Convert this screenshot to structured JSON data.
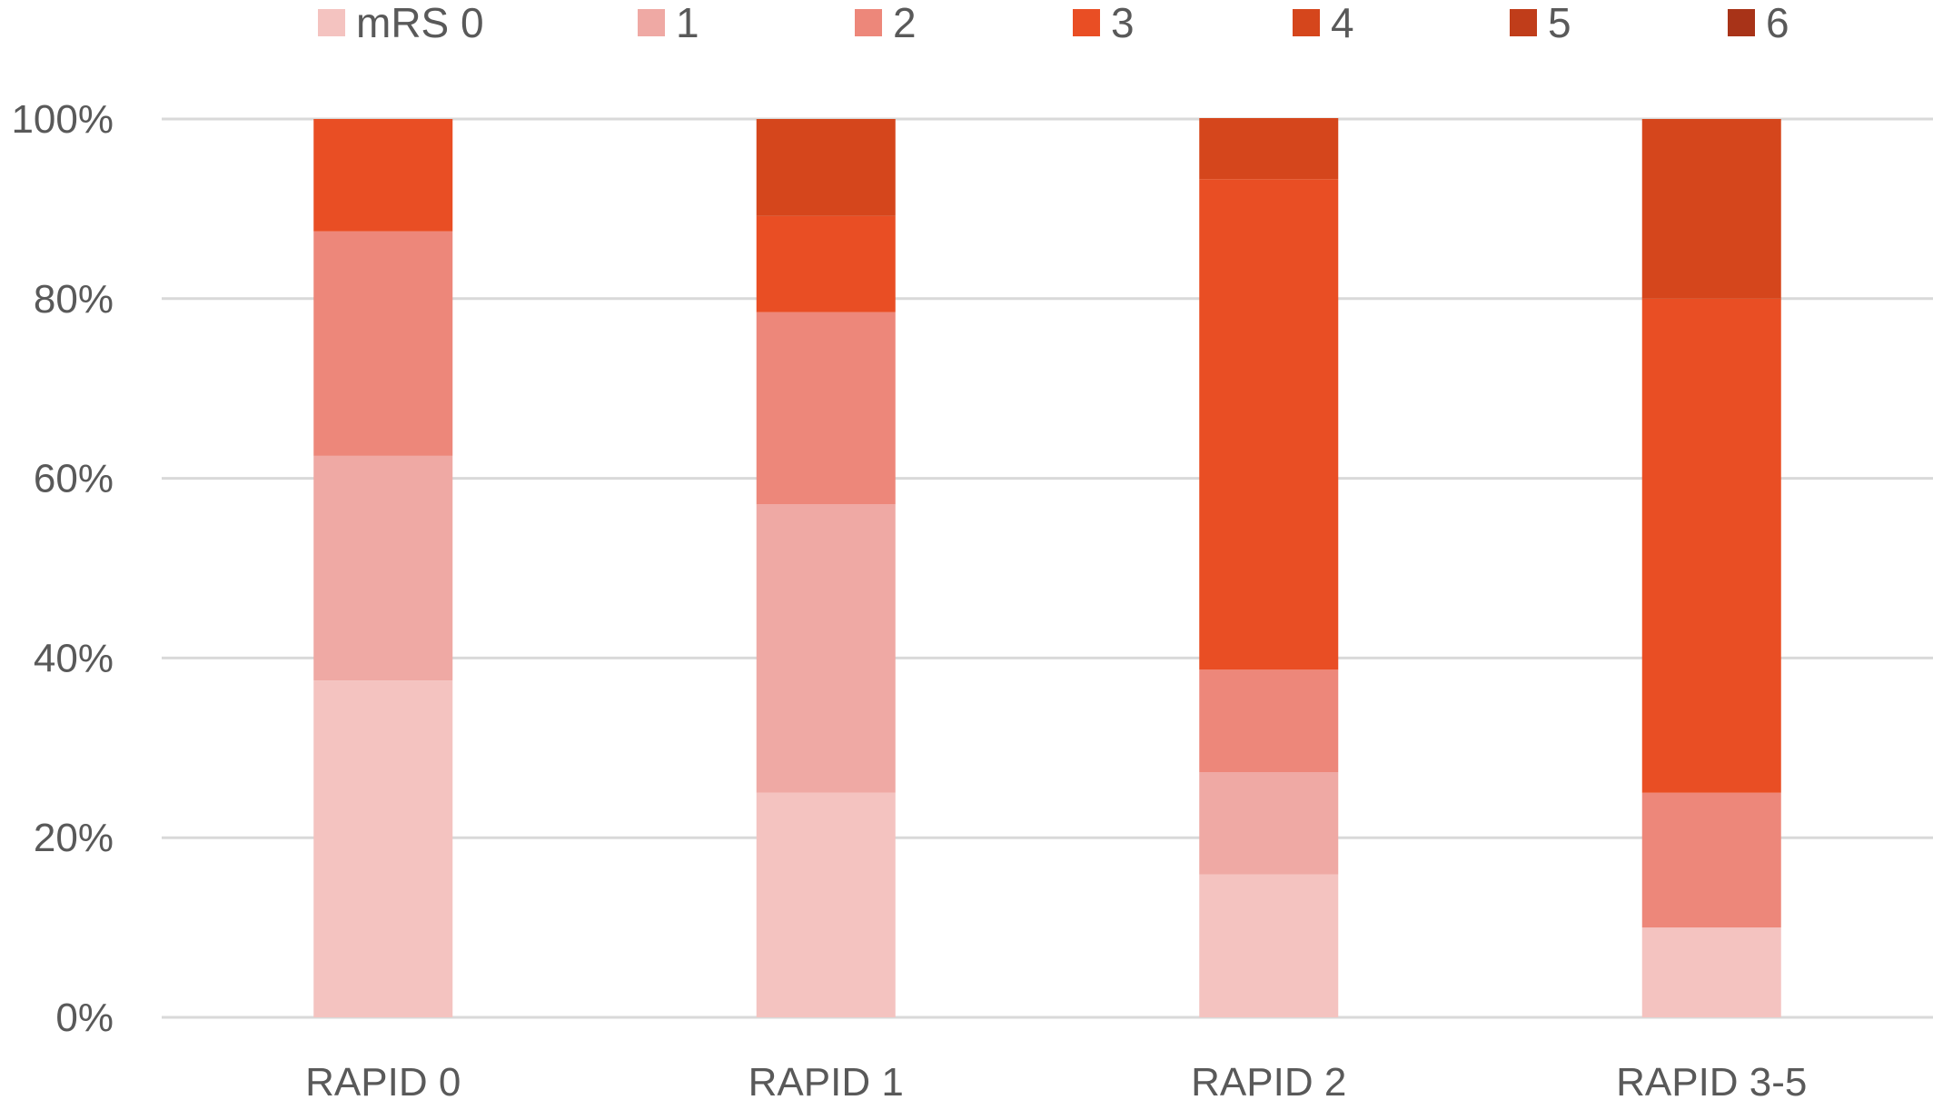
{
  "chart_data": {
    "type": "bar",
    "stacked": true,
    "percent": true,
    "categories": [
      "RAPID 0",
      "RAPID 1",
      "RAPID 2",
      "RAPID 3-5"
    ],
    "series": [
      {
        "name": "mRS 0",
        "color": "#f4c3c0",
        "values": [
          37.5,
          25.0,
          15.9,
          10.0
        ]
      },
      {
        "name": "1",
        "color": "#efa9a4",
        "values": [
          25.0,
          32.1,
          11.4,
          0.0
        ]
      },
      {
        "name": "2",
        "color": "#ed877a",
        "values": [
          25.0,
          21.4,
          11.4,
          15.0
        ]
      },
      {
        "name": "3",
        "color": "#e94e24",
        "values": [
          12.5,
          10.7,
          54.6,
          55.0
        ]
      },
      {
        "name": "4",
        "color": "#d5461c",
        "values": [
          0.0,
          10.8,
          6.8,
          20.0
        ]
      },
      {
        "name": "5",
        "color": "#c03d1a",
        "values": [
          0.0,
          0.0,
          0.0,
          0.0
        ]
      },
      {
        "name": "6",
        "color": "#a83318",
        "values": [
          0.0,
          0.0,
          0.0,
          0.0
        ]
      }
    ],
    "y_ticks": [
      "0%",
      "20%",
      "40%",
      "60%",
      "80%",
      "100%"
    ],
    "ylim": [
      0,
      100
    ],
    "title": "",
    "xlabel": "",
    "ylabel": "",
    "grid": true,
    "legend_position": "top"
  }
}
